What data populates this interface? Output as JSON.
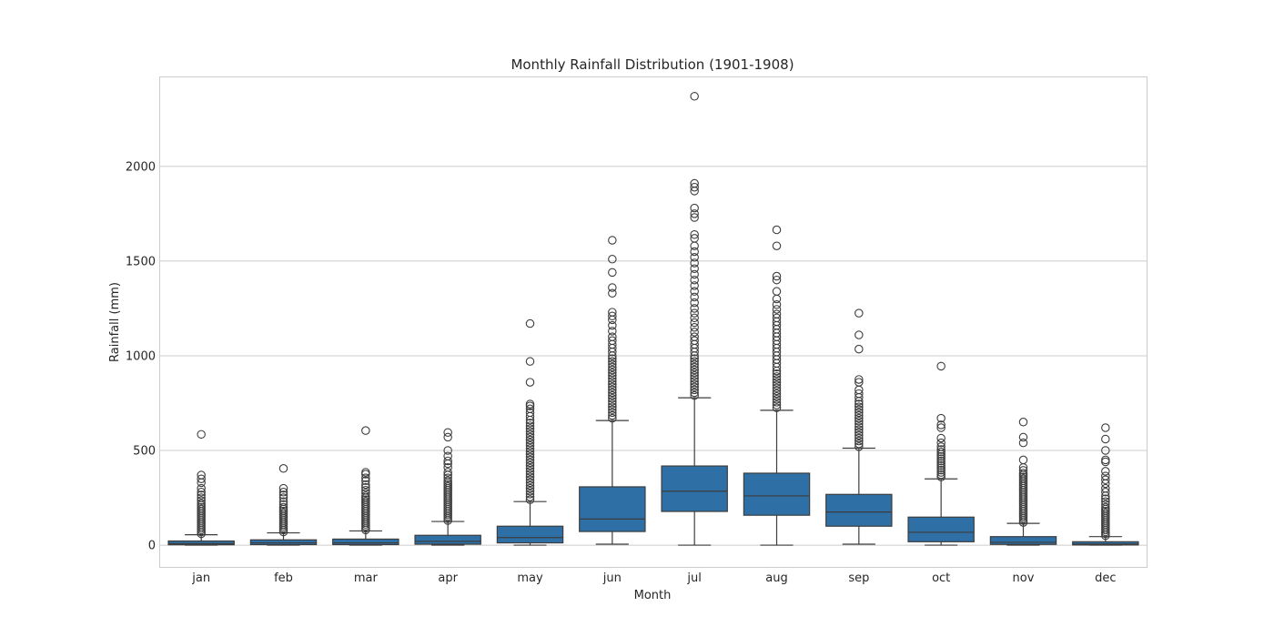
{
  "chart_data": {
    "type": "box",
    "title": "Monthly Rainfall Distribution (1901-1908)",
    "xlabel": "Month",
    "ylabel": "Rainfall (mm)",
    "ylim": [
      -115,
      2470
    ],
    "yticks": [
      0,
      500,
      1000,
      1500,
      2000
    ],
    "grid": true,
    "box_color": "#2e6fa5",
    "categories": [
      "jan",
      "feb",
      "mar",
      "apr",
      "may",
      "jun",
      "jul",
      "aug",
      "sep",
      "oct",
      "nov",
      "dec"
    ],
    "boxes": [
      {
        "label": "jan",
        "whisker_low": 0,
        "q1": 2,
        "median": 8,
        "q3": 22,
        "whisker_high": 55,
        "outliers": [
          60,
          70,
          80,
          90,
          100,
          110,
          120,
          130,
          140,
          150,
          160,
          170,
          180,
          190,
          200,
          210,
          220,
          235,
          250,
          265,
          280,
          300,
          330,
          350,
          370,
          585
        ]
      },
      {
        "label": "feb",
        "whisker_low": 0,
        "q1": 3,
        "median": 12,
        "q3": 28,
        "whisker_high": 65,
        "outliers": [
          70,
          80,
          90,
          100,
          110,
          120,
          130,
          140,
          150,
          160,
          170,
          180,
          190,
          200,
          215,
          230,
          250,
          265,
          280,
          300,
          405
        ]
      },
      {
        "label": "mar",
        "whisker_low": 0,
        "q1": 3,
        "median": 12,
        "q3": 32,
        "whisker_high": 75,
        "outliers": [
          80,
          90,
          100,
          110,
          120,
          130,
          140,
          150,
          160,
          170,
          180,
          190,
          200,
          210,
          220,
          230,
          240,
          250,
          260,
          275,
          290,
          305,
          320,
          340,
          355,
          375,
          385,
          605
        ]
      },
      {
        "label": "apr",
        "whisker_low": 0,
        "q1": 5,
        "median": 20,
        "q3": 52,
        "whisker_high": 125,
        "outliers": [
          130,
          140,
          150,
          160,
          170,
          180,
          190,
          200,
          210,
          220,
          230,
          240,
          250,
          260,
          270,
          280,
          290,
          300,
          310,
          320,
          330,
          340,
          355,
          370,
          385,
          410,
          430,
          445,
          470,
          500,
          570,
          595
        ]
      },
      {
        "label": "may",
        "whisker_low": 0,
        "q1": 12,
        "median": 40,
        "q3": 100,
        "whisker_high": 230,
        "outliers": [
          240,
          255,
          270,
          285,
          300,
          315,
          330,
          345,
          360,
          375,
          390,
          405,
          420,
          435,
          450,
          465,
          480,
          495,
          510,
          525,
          540,
          555,
          570,
          585,
          600,
          615,
          630,
          645,
          660,
          680,
          700,
          720,
          735,
          745,
          860,
          970,
          1170
        ]
      },
      {
        "label": "jun",
        "whisker_low": 5,
        "q1": 72,
        "median": 138,
        "q3": 308,
        "whisker_high": 658,
        "outliers": [
          670,
          685,
          700,
          715,
          730,
          745,
          760,
          775,
          790,
          805,
          820,
          835,
          850,
          865,
          880,
          895,
          910,
          925,
          940,
          955,
          970,
          985,
          1000,
          1020,
          1040,
          1060,
          1080,
          1100,
          1130,
          1160,
          1190,
          1210,
          1230,
          1330,
          1360,
          1440,
          1510,
          1610
        ]
      },
      {
        "label": "jul",
        "whisker_low": 0,
        "q1": 178,
        "median": 285,
        "q3": 418,
        "whisker_high": 778,
        "outliers": [
          790,
          805,
          820,
          835,
          850,
          865,
          880,
          895,
          910,
          925,
          940,
          955,
          970,
          985,
          1000,
          1020,
          1040,
          1060,
          1080,
          1100,
          1125,
          1150,
          1175,
          1200,
          1225,
          1250,
          1280,
          1310,
          1340,
          1370,
          1400,
          1430,
          1460,
          1490,
          1520,
          1550,
          1580,
          1620,
          1640,
          1730,
          1750,
          1780,
          1870,
          1890,
          1910,
          2370
        ]
      },
      {
        "label": "aug",
        "whisker_low": 0,
        "q1": 158,
        "median": 260,
        "q3": 380,
        "whisker_high": 712,
        "outliers": [
          725,
          740,
          755,
          770,
          785,
          800,
          815,
          830,
          845,
          860,
          875,
          890,
          905,
          920,
          940,
          960,
          980,
          1000,
          1020,
          1040,
          1060,
          1080,
          1100,
          1120,
          1140,
          1160,
          1180,
          1200,
          1220,
          1245,
          1270,
          1300,
          1340,
          1400,
          1420,
          1580,
          1665
        ]
      },
      {
        "label": "sep",
        "whisker_low": 5,
        "q1": 100,
        "median": 175,
        "q3": 268,
        "whisker_high": 512,
        "outliers": [
          520,
          535,
          550,
          565,
          580,
          595,
          610,
          625,
          640,
          655,
          670,
          685,
          700,
          715,
          730,
          745,
          760,
          780,
          800,
          820,
          860,
          875,
          1035,
          1110,
          1225
        ]
      },
      {
        "label": "oct",
        "whisker_low": 0,
        "q1": 18,
        "median": 68,
        "q3": 148,
        "whisker_high": 350,
        "outliers": [
          360,
          372,
          384,
          396,
          408,
          420,
          432,
          444,
          456,
          468,
          480,
          492,
          505,
          520,
          540,
          565,
          620,
          635,
          670,
          945
        ]
      },
      {
        "label": "nov",
        "whisker_low": 0,
        "q1": 4,
        "median": 15,
        "q3": 45,
        "whisker_high": 115,
        "outliers": [
          120,
          130,
          140,
          150,
          160,
          170,
          180,
          190,
          200,
          210,
          220,
          230,
          240,
          250,
          260,
          270,
          280,
          290,
          300,
          310,
          320,
          330,
          340,
          350,
          360,
          370,
          380,
          395,
          410,
          450,
          540,
          570,
          650
        ]
      },
      {
        "label": "dec",
        "whisker_low": 0,
        "q1": 1,
        "median": 6,
        "q3": 18,
        "whisker_high": 45,
        "outliers": [
          50,
          60,
          70,
          80,
          90,
          100,
          110,
          120,
          130,
          140,
          150,
          160,
          170,
          180,
          190,
          200,
          215,
          230,
          245,
          260,
          280,
          300,
          325,
          345,
          365,
          390,
          440,
          450,
          500,
          560,
          620
        ]
      }
    ]
  }
}
